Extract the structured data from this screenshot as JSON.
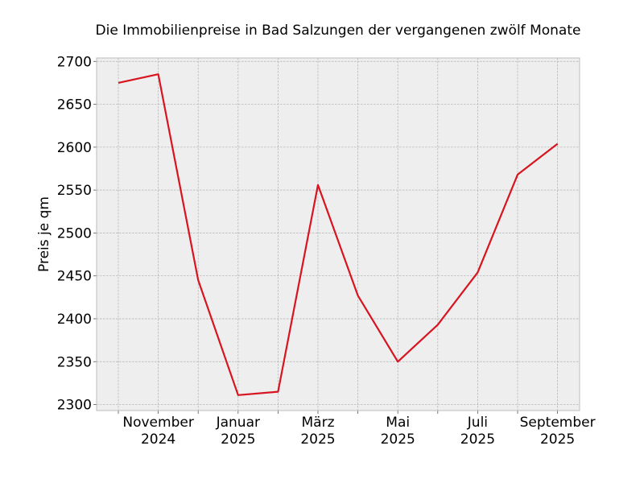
{
  "chart_data": {
    "type": "line",
    "title": "Die Immobilienpreise in Bad Salzungen der vergangenen zwölf Monate",
    "xlabel": "",
    "ylabel": "Preis je qm",
    "x": [
      "2024-10",
      "2024-11",
      "2024-12",
      "2025-01",
      "2025-02",
      "2025-03",
      "2025-04",
      "2025-05",
      "2025-06",
      "2025-07",
      "2025-08",
      "2025-09"
    ],
    "series": [
      {
        "values": [
          2675,
          2685,
          2445,
          2311,
          2315,
          2556,
          2427,
          2350,
          2393,
          2454,
          2568,
          2604
        ]
      }
    ],
    "x_tick_labels": [
      {
        "x": "2024-11",
        "line1": "November",
        "line2": "2024"
      },
      {
        "x": "2025-01",
        "line1": "Januar",
        "line2": "2025"
      },
      {
        "x": "2025-03",
        "line1": "März",
        "line2": "2025"
      },
      {
        "x": "2025-05",
        "line1": "Mai",
        "line2": "2025"
      },
      {
        "x": "2025-07",
        "line1": "Juli",
        "line2": "2025"
      },
      {
        "x": "2025-09",
        "line1": "September",
        "line2": "2025"
      }
    ],
    "y_ticks": [
      "2300",
      "2350",
      "2400",
      "2450",
      "2500",
      "2550",
      "2600",
      "2650",
      "2700"
    ],
    "ylim": [
      2293,
      2704
    ],
    "grid": true,
    "colors": {
      "line": "#d7141f",
      "background": "#eeeeee",
      "grid": "#b0b0b0",
      "frame": "#bcbcbc"
    }
  }
}
